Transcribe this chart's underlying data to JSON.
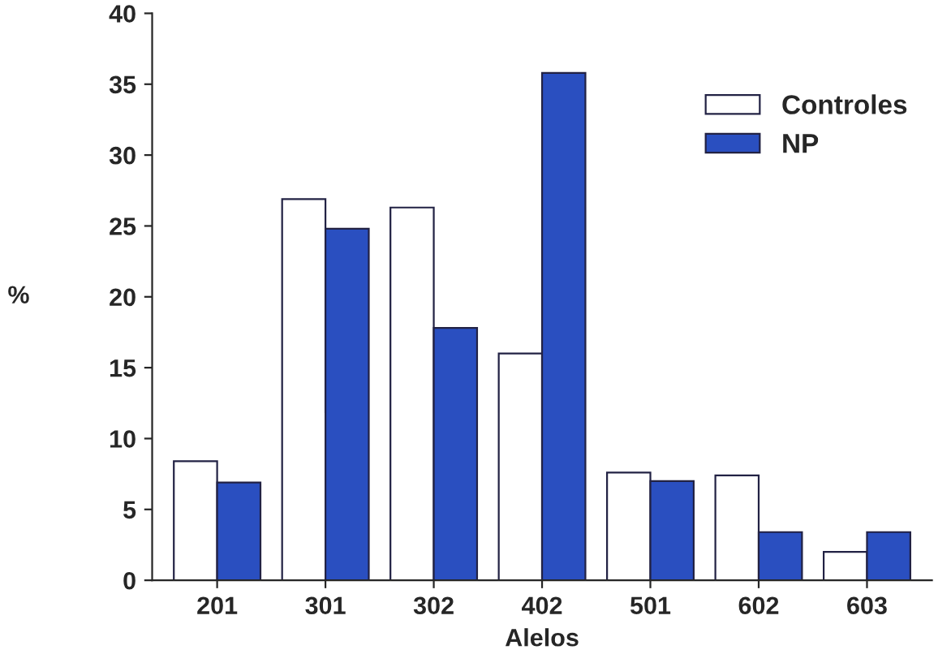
{
  "chart_data": {
    "type": "bar",
    "xlabel": "Alelos",
    "ylabel": "%",
    "categories": [
      "201",
      "301",
      "302",
      "402",
      "501",
      "602",
      "603"
    ],
    "series": [
      {
        "name": "Controles",
        "color": "#ffffff",
        "values": [
          8.4,
          26.9,
          26.3,
          16.0,
          7.6,
          7.4,
          2.0
        ]
      },
      {
        "name": "NP",
        "color": "#2a4fc0",
        "values": [
          6.9,
          24.8,
          17.8,
          35.8,
          7.0,
          3.4,
          3.4
        ]
      }
    ],
    "ylim": [
      0,
      40
    ],
    "yticks": [
      0,
      5,
      10,
      15,
      20,
      25,
      30,
      35,
      40
    ],
    "grid": false,
    "legend": "top right"
  }
}
